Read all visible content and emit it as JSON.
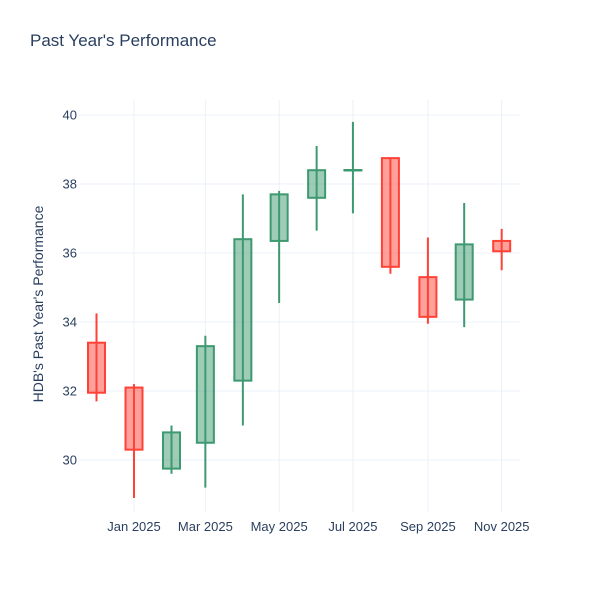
{
  "chart_data": {
    "type": "candlestick",
    "title": "Past Year's Performance",
    "legend": "none",
    "grid": "on",
    "y_axis": {
      "title": "HDB's Past Year's Performance",
      "ticks": [
        30,
        32,
        34,
        36,
        38,
        40
      ],
      "range": [
        28.6,
        40.45
      ]
    },
    "x_axis": {
      "ticks": [
        {
          "label": "Jan 2025",
          "date": "2025-01-01"
        },
        {
          "label": "Mar 2025",
          "date": "2025-03-01"
        },
        {
          "label": "May 2025",
          "date": "2025-05-01"
        },
        {
          "label": "Jul 2025",
          "date": "2025-07-01"
        },
        {
          "label": "Sep 2025",
          "date": "2025-09-01"
        },
        {
          "label": "Nov 2025",
          "date": "2025-11-01"
        }
      ]
    },
    "colors": {
      "increasing": "#3d9970",
      "increasing_fill": "rgba(61,153,112,0.5)",
      "decreasing": "#ff4136",
      "decreasing_fill": "rgba(255,65,54,0.5)",
      "grid": "#ebf0f8",
      "text": "#2a3f5f",
      "background": "#ffffff"
    },
    "candles": [
      {
        "month": "Dec 2024",
        "date": "2024-12-01",
        "open": 33.4,
        "high": 34.25,
        "low": 31.7,
        "close": 31.95,
        "direction": "down"
      },
      {
        "month": "Jan 2025",
        "date": "2025-01-01",
        "open": 32.1,
        "high": 32.2,
        "low": 28.9,
        "close": 30.3,
        "direction": "down"
      },
      {
        "month": "Feb 2025",
        "date": "2025-02-01",
        "open": 29.75,
        "high": 31.0,
        "low": 29.6,
        "close": 30.8,
        "direction": "up"
      },
      {
        "month": "Mar 2025",
        "date": "2025-03-01",
        "open": 30.5,
        "high": 33.6,
        "low": 29.2,
        "close": 33.3,
        "direction": "up"
      },
      {
        "month": "Apr 2025",
        "date": "2025-04-01",
        "open": 32.3,
        "high": 37.7,
        "low": 31.0,
        "close": 36.4,
        "direction": "up"
      },
      {
        "month": "May 2025",
        "date": "2025-05-01",
        "open": 36.35,
        "high": 37.8,
        "low": 34.55,
        "close": 37.7,
        "direction": "up"
      },
      {
        "month": "Jun 2025",
        "date": "2025-06-01",
        "open": 37.6,
        "high": 39.1,
        "low": 36.65,
        "close": 38.4,
        "direction": "up"
      },
      {
        "month": "Jul 2025",
        "date": "2025-07-01",
        "open": 38.4,
        "high": 39.8,
        "low": 37.15,
        "close": 38.4,
        "direction": "doji"
      },
      {
        "month": "Aug 2025",
        "date": "2025-08-01",
        "open": 38.75,
        "high": 38.75,
        "low": 35.4,
        "close": 35.6,
        "direction": "down"
      },
      {
        "month": "Sep 2025",
        "date": "2025-09-01",
        "open": 35.3,
        "high": 36.45,
        "low": 33.95,
        "close": 34.15,
        "direction": "down"
      },
      {
        "month": "Oct 2025",
        "date": "2025-10-01",
        "open": 34.65,
        "high": 37.45,
        "low": 33.85,
        "close": 36.25,
        "direction": "up"
      },
      {
        "month": "Nov 2025",
        "date": "2025-11-01",
        "open": 36.35,
        "high": 36.7,
        "low": 35.5,
        "close": 36.05,
        "direction": "down"
      }
    ]
  }
}
